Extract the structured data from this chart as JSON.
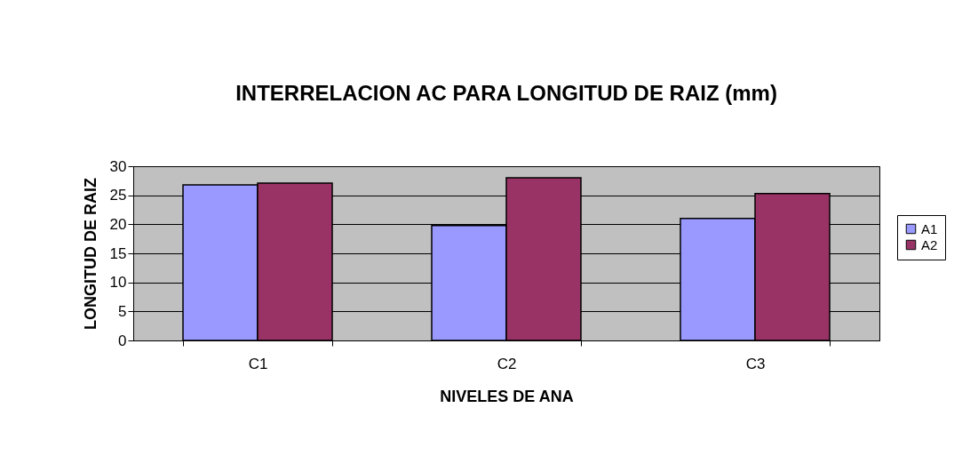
{
  "chart_data": {
    "type": "bar",
    "title": "INTERRELACION  AC PARA LONGITUD DE RAIZ (mm)",
    "xlabel": "NIVELES  DE ANA",
    "ylabel": "LONGITUD DE  RAIZ",
    "categories": [
      "C1",
      "C2",
      "C3"
    ],
    "series": [
      {
        "name": "A1",
        "color": "#9999ff",
        "values": [
          26.8,
          19.8,
          21.0
        ]
      },
      {
        "name": "A2",
        "color": "#993366",
        "values": [
          27.1,
          28.0,
          25.3
        ]
      }
    ],
    "ylim": [
      0,
      30
    ],
    "yticks": [
      0,
      5,
      10,
      15,
      20,
      25,
      30
    ],
    "grid": "y",
    "legend": "right"
  }
}
